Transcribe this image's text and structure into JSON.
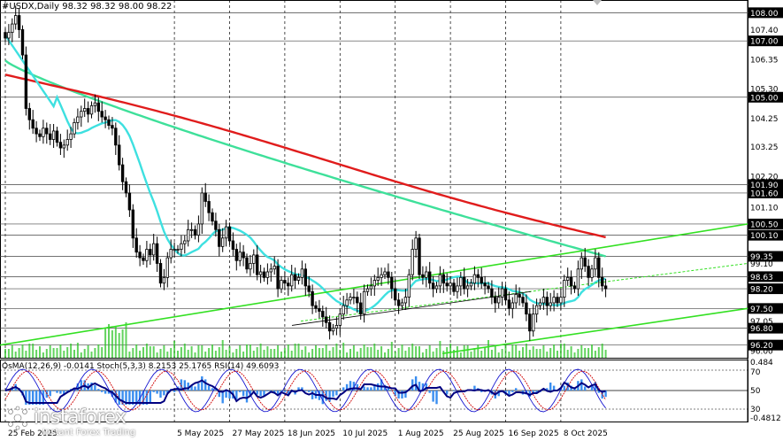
{
  "header": {
    "title": "#USDX,Daily  98.32 98.32 98.00 98.22",
    "indicators": "OsMA(12,26,9) -0.0141  Stoch(5,3,3) 8.2153 25.1765  RSI(14) 49.6093"
  },
  "price_labels": [
    {
      "text": "108.00",
      "value": 108.0,
      "boxed": true,
      "color": "#ffffff"
    },
    {
      "text": "107.40",
      "value": 107.4,
      "boxed": false
    },
    {
      "text": "107.00",
      "value": 107.0,
      "boxed": true,
      "color": "#ffffff"
    },
    {
      "text": "106.35",
      "value": 106.35,
      "boxed": false
    },
    {
      "text": "105.30",
      "value": 105.3,
      "boxed": false
    },
    {
      "text": "105.00",
      "value": 105.0,
      "boxed": true,
      "color": "#ffffff"
    },
    {
      "text": "104.25",
      "value": 104.25,
      "boxed": false
    },
    {
      "text": "103.25",
      "value": 103.25,
      "boxed": false
    },
    {
      "text": "102.20",
      "value": 102.2,
      "boxed": false
    },
    {
      "text": "101.90",
      "value": 101.9,
      "boxed": true,
      "color": "#ffffff"
    },
    {
      "text": "101.60",
      "value": 101.6,
      "boxed": true,
      "color": "#ffffff"
    },
    {
      "text": "101.10",
      "value": 101.1,
      "boxed": false
    },
    {
      "text": "100.50",
      "value": 100.5,
      "boxed": true,
      "color": "#ffffff"
    },
    {
      "text": "100.10",
      "value": 100.1,
      "boxed": true,
      "color": "#ffffff"
    },
    {
      "text": "99.35",
      "value": 99.35,
      "boxed": true,
      "color": "#ffffff"
    },
    {
      "text": "99.10",
      "value": 99.1,
      "boxed": false
    },
    {
      "text": "98.63",
      "value": 98.63,
      "boxed": true,
      "color": "#ffffff"
    },
    {
      "text": "98.20",
      "value": 98.2,
      "boxed": true,
      "color": "#ffffff"
    },
    {
      "text": "97.50",
      "value": 97.5,
      "boxed": true,
      "color": "#ffffff"
    },
    {
      "text": "97.05",
      "value": 97.05,
      "boxed": false
    },
    {
      "text": "96.80",
      "value": 96.8,
      "boxed": true,
      "color": "#ffffff"
    },
    {
      "text": "96.20",
      "value": 96.2,
      "boxed": true,
      "color": "#ffffff"
    },
    {
      "text": "96.00",
      "value": 96.0,
      "boxed": false
    }
  ],
  "indicator_labels": [
    {
      "text": "0.484",
      "value": 0.484
    },
    {
      "text": "70",
      "value": 70
    },
    {
      "text": "50",
      "value": 50
    },
    {
      "text": "30",
      "value": 30
    },
    {
      "text": "-0.4812",
      "value": -0.4812
    }
  ],
  "date_labels": [
    {
      "text": "25 Feb 2025",
      "index": 0
    },
    {
      "text": "5 May 2025",
      "index": 49
    },
    {
      "text": "27 May 2025",
      "index": 65
    },
    {
      "text": "18 Jun 2025",
      "index": 81
    },
    {
      "text": "10 Jul 2025",
      "index": 97
    },
    {
      "text": "1 Aug 2025",
      "index": 113
    },
    {
      "text": "25 Aug 2025",
      "index": 129
    },
    {
      "text": "16 Sep 2025",
      "index": 145
    },
    {
      "text": "8 Oct 2025",
      "index": 161
    }
  ],
  "chart_data": {
    "type": "candlestick",
    "symbol": "#USDX",
    "timeframe": "Daily",
    "ylim": [
      95.75,
      108.2
    ],
    "closes": [
      107.1,
      107.3,
      107.6,
      107.9,
      107.4,
      106.5,
      104.6,
      104.2,
      103.9,
      103.7,
      103.6,
      103.9,
      103.7,
      103.5,
      103.8,
      103.4,
      103.2,
      103.3,
      103.5,
      103.7,
      104.1,
      104.3,
      104.5,
      104.6,
      104.4,
      104.7,
      104.8,
      104.5,
      104.3,
      104.2,
      104.0,
      103.9,
      103.3,
      102.6,
      102.0,
      101.6,
      101.0,
      100.0,
      99.5,
      99.3,
      99.2,
      99.6,
      99.4,
      99.8,
      99.1,
      98.4,
      98.6,
      99.3,
      99.6,
      99.6,
      99.6,
      99.8,
      99.9,
      100.3,
      100.3,
      100.1,
      100.5,
      101.6,
      101.3,
      100.9,
      100.6,
      100.3,
      99.7,
      100.0,
      100.4,
      99.9,
      99.6,
      99.2,
      99.5,
      99.3,
      98.9,
      99.1,
      99.4,
      98.7,
      98.8,
      98.6,
      98.8,
      98.9,
      99.0,
      98.2,
      98.5,
      98.4,
      98.3,
      98.7,
      98.5,
      98.6,
      98.9,
      98.3,
      98.1,
      97.6,
      97.5,
      97.4,
      97.2,
      97.0,
      96.7,
      96.8,
      96.9,
      97.3,
      97.6,
      97.8,
      97.9,
      97.9,
      97.7,
      97.3,
      98.1,
      98.2,
      98.3,
      98.5,
      98.6,
      98.7,
      98.8,
      98.6,
      98.2,
      97.8,
      97.6,
      97.7,
      97.9,
      98.7,
      99.6,
      100.0,
      98.7,
      98.6,
      98.8,
      98.4,
      98.2,
      98.3,
      98.7,
      98.4,
      98.3,
      98.4,
      98.1,
      98.3,
      98.6,
      98.2,
      98.3,
      98.4,
      98.7,
      98.6,
      98.4,
      98.3,
      98.2,
      97.9,
      97.7,
      97.9,
      98.2,
      97.8,
      97.5,
      97.7,
      98.0,
      97.9,
      97.7,
      97.3,
      96.7,
      97.3,
      97.6,
      97.7,
      97.9,
      97.6,
      97.7,
      97.9,
      97.7,
      97.9,
      98.5,
      98.6,
      98.3,
      98.2,
      98.9,
      99.3,
      99.0,
      98.6,
      98.9,
      99.3,
      98.6,
      98.3,
      98.2
    ]
  },
  "colors": {
    "background": "#ffffff",
    "candle": "#000000",
    "ma_fast": "#3ee0e0",
    "ma_mid": "#3ee09a",
    "ma_slow": "#e01c1c",
    "trendline": "#33e022",
    "osma": "#3a8ef0",
    "stoch_main": "#1515d0",
    "stoch_signal": "#d00000",
    "rsi": "#000080",
    "volume": "#2ec428",
    "grid": "#000000"
  },
  "logo": {
    "name": "instaforex",
    "tagline": "Instant Forex Trading"
  }
}
